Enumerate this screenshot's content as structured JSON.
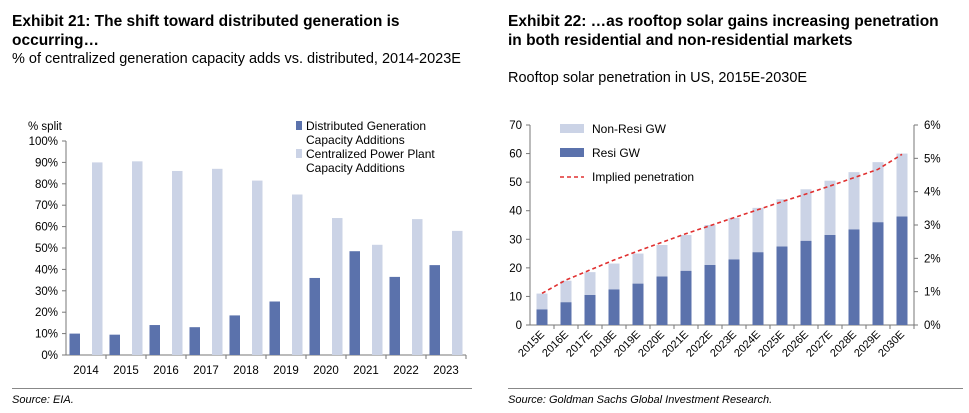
{
  "colors": {
    "dark_bar": "#5b72ac",
    "light_bar": "#cbd3e6",
    "line": "#e03030",
    "axis": "#777777"
  },
  "exhibit21": {
    "title": "Exhibit 21: The shift toward distributed generation is occurring…",
    "subtitle": "% of centralized generation capacity adds vs. distributed, 2014-2023E",
    "source": "Source: EIA."
  },
  "exhibit22": {
    "title": "Exhibit 22: …as rooftop solar gains increasing penetration in both residential and non-residential markets",
    "subtitle": "Rooftop solar penetration in US, 2015E-2030E",
    "source": "Source: Goldman Sachs Global Investment Research."
  },
  "chart_data": [
    {
      "type": "bar",
      "ylabel": "% split",
      "ylim": [
        0,
        100
      ],
      "yticks": [
        "0%",
        "10%",
        "20%",
        "30%",
        "40%",
        "50%",
        "60%",
        "70%",
        "80%",
        "90%",
        "100%"
      ],
      "categories": [
        "2014",
        "2015",
        "2016",
        "2017",
        "2018",
        "2019",
        "2020",
        "2021",
        "2022",
        "2023"
      ],
      "series": [
        {
          "name": "Distributed Generation Capacity Additions",
          "color": "#5b72ac",
          "values": [
            10,
            9.5,
            14,
            13,
            18.5,
            25,
            36,
            48.5,
            36.5,
            42
          ]
        },
        {
          "name": "Centralized Power Plant Capacity Additions",
          "color": "#cbd3e6",
          "values": [
            90,
            90.5,
            86,
            87,
            81.5,
            75,
            64,
            51.5,
            63.5,
            58
          ]
        }
      ],
      "grid": false,
      "legend": "top-right"
    },
    {
      "type": "bar",
      "stacked": true,
      "categories": [
        "2015E",
        "2016E",
        "2017E",
        "2018E",
        "2019E",
        "2020E",
        "2021E",
        "2022E",
        "2023E",
        "2024E",
        "2025E",
        "2026E",
        "2027E",
        "2028E",
        "2029E",
        "2030E"
      ],
      "ylim": [
        0,
        70
      ],
      "yticks": [
        "0",
        "10",
        "20",
        "30",
        "40",
        "50",
        "60",
        "70"
      ],
      "y2lim": [
        0,
        6
      ],
      "y2ticks": [
        "0%",
        "1%",
        "2%",
        "3%",
        "4%",
        "5%",
        "6%"
      ],
      "series": [
        {
          "name": "Resi GW",
          "color": "#5b72ac",
          "stack_order": 0,
          "values": [
            5.5,
            8,
            10.5,
            12.5,
            14.5,
            17,
            19,
            21,
            23,
            25.5,
            27.5,
            29.5,
            31.5,
            33.5,
            36,
            38
          ]
        },
        {
          "name": "Non-Resi GW",
          "color": "#cbd3e6",
          "stack_order": 1,
          "values": [
            5.5,
            7.5,
            8,
            9,
            10.5,
            11,
            12.5,
            14,
            14.5,
            15.5,
            16.5,
            18,
            19,
            20,
            21,
            22
          ]
        },
        {
          "name": "Implied penetration",
          "color": "#e03030",
          "type": "line",
          "axis": "right",
          "values": [
            0.95,
            1.35,
            1.65,
            1.95,
            2.22,
            2.48,
            2.74,
            2.98,
            3.22,
            3.46,
            3.7,
            3.93,
            4.17,
            4.42,
            4.67,
            5.12
          ]
        }
      ],
      "legend_order": [
        "Non-Resi GW",
        "Resi GW",
        "Implied penetration"
      ],
      "grid": false,
      "legend": "top-left"
    }
  ]
}
